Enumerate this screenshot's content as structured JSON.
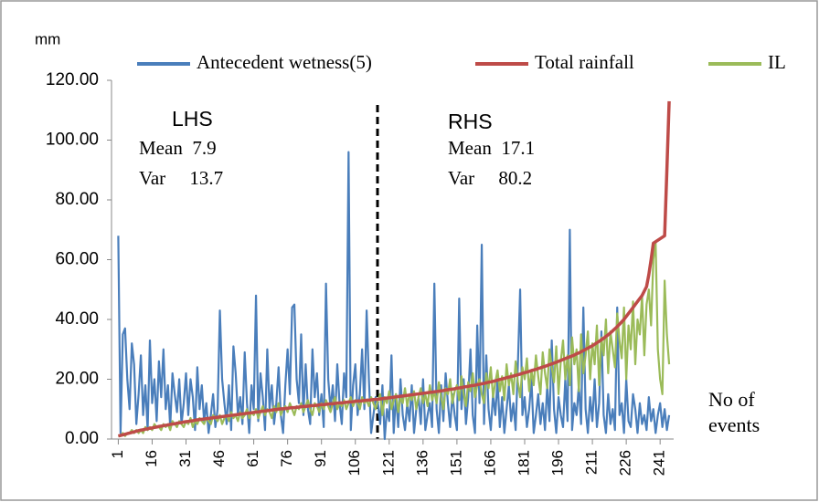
{
  "chart_data": {
    "type": "line",
    "y_label": "mm",
    "x_label": [
      "No of",
      "events"
    ],
    "annotations": [
      "LHS",
      "Mean  7.9",
      "Var     13.7",
      "RHS",
      "Mean  17.1",
      "Var     80.2"
    ],
    "legend": "top",
    "xlim": [
      -2,
      247
    ],
    "xticks": [
      1,
      16,
      31,
      46,
      61,
      76,
      91,
      106,
      121,
      136,
      151,
      166,
      181,
      196,
      211,
      226,
      241
    ],
    "ylim": [
      0,
      120
    ],
    "yticks": [
      {
        "value": 0,
        "label": "0.00"
      },
      {
        "value": 20,
        "label": "20.00"
      },
      {
        "value": 40,
        "label": "40.00"
      },
      {
        "value": 60,
        "label": "60.00"
      },
      {
        "value": 80,
        "label": "80.00"
      },
      {
        "value": 100,
        "label": "100.00"
      },
      {
        "value": 120,
        "label": "120.00"
      }
    ],
    "x": [
      1,
      2,
      3,
      4,
      5,
      6,
      7,
      8,
      9,
      10,
      11,
      12,
      13,
      14,
      15,
      16,
      17,
      18,
      19,
      20,
      21,
      22,
      23,
      24,
      25,
      26,
      27,
      28,
      29,
      30,
      31,
      32,
      33,
      34,
      35,
      36,
      37,
      38,
      39,
      40,
      41,
      42,
      43,
      44,
      45,
      46,
      47,
      48,
      49,
      50,
      51,
      52,
      53,
      54,
      55,
      56,
      57,
      58,
      59,
      60,
      61,
      62,
      63,
      64,
      65,
      66,
      67,
      68,
      69,
      70,
      71,
      72,
      73,
      74,
      75,
      76,
      77,
      78,
      79,
      80,
      81,
      82,
      83,
      84,
      85,
      86,
      87,
      88,
      89,
      90,
      91,
      92,
      93,
      94,
      95,
      96,
      97,
      98,
      99,
      100,
      101,
      102,
      103,
      104,
      105,
      106,
      107,
      108,
      109,
      110,
      111,
      112,
      113,
      114,
      115,
      116,
      117,
      118,
      119,
      120,
      121,
      122,
      123,
      124,
      125,
      126,
      127,
      128,
      129,
      130,
      131,
      132,
      133,
      134,
      135,
      136,
      137,
      138,
      139,
      140,
      141,
      142,
      143,
      144,
      145,
      146,
      147,
      148,
      149,
      150,
      151,
      152,
      153,
      154,
      155,
      156,
      157,
      158,
      159,
      160,
      161,
      162,
      163,
      164,
      165,
      166,
      167,
      168,
      169,
      170,
      171,
      172,
      173,
      174,
      175,
      176,
      177,
      178,
      179,
      180,
      181,
      182,
      183,
      184,
      185,
      186,
      187,
      188,
      189,
      190,
      191,
      192,
      193,
      194,
      195,
      196,
      197,
      198,
      199,
      200,
      201,
      202,
      203,
      204,
      205,
      206,
      207,
      208,
      209,
      210,
      211,
      212,
      213,
      214,
      215,
      216,
      217,
      218,
      219,
      220,
      221,
      222,
      223,
      224,
      225,
      226,
      227,
      228,
      229,
      230,
      231,
      232,
      233,
      234,
      235,
      236,
      237,
      238,
      239,
      240,
      241,
      242,
      243,
      244,
      245
    ],
    "series": [
      {
        "name": "Antecedent wetness(5)",
        "color": "#4a7ebb",
        "values": [
          68,
          2,
          35,
          37,
          20,
          10,
          32,
          25,
          5,
          15,
          28,
          8,
          18,
          3,
          33,
          12,
          20,
          6,
          26,
          14,
          30,
          10,
          18,
          4,
          22,
          15,
          9,
          20,
          5,
          12,
          22,
          8,
          20,
          14,
          3,
          24,
          10,
          18,
          6,
          12,
          2,
          8,
          15,
          4,
          10,
          43,
          20,
          12,
          5,
          18,
          3,
          31,
          22,
          8,
          14,
          5,
          29,
          12,
          2,
          18,
          10,
          48,
          6,
          22,
          14,
          3,
          30,
          10,
          18,
          5,
          12,
          24,
          8,
          2,
          18,
          30,
          15,
          44,
          45,
          20,
          12,
          35,
          8,
          25,
          10,
          5,
          30,
          14,
          22,
          8,
          15,
          4,
          52,
          20,
          10,
          18,
          6,
          25,
          12,
          5,
          22,
          14,
          96,
          3,
          18,
          25,
          8,
          15,
          30,
          10,
          43,
          20,
          2,
          8,
          14,
          12,
          5,
          18,
          0,
          10,
          6,
          28,
          2,
          15,
          4,
          20,
          8,
          3,
          12,
          6,
          18,
          2,
          10,
          14,
          5,
          20,
          3,
          8,
          12,
          4,
          52,
          10,
          2,
          18,
          6,
          22,
          12,
          4,
          15,
          8,
          3,
          47,
          10,
          20,
          5,
          14,
          30,
          8,
          2,
          38,
          12,
          65,
          5,
          28,
          10,
          3,
          15,
          8,
          20,
          4,
          14,
          2,
          10,
          18,
          6,
          12,
          3,
          25,
          50,
          8,
          14,
          4,
          10,
          20,
          2,
          8,
          15,
          5,
          12,
          3,
          18,
          6,
          33,
          10,
          2,
          14,
          8,
          4,
          20,
          6,
          70,
          3,
          12,
          8,
          18,
          5,
          44,
          10,
          2,
          14,
          6,
          20,
          4,
          12,
          36,
          8,
          2,
          15,
          5,
          10,
          3,
          44,
          8,
          12,
          2,
          20,
          6,
          4,
          15,
          10,
          2,
          12,
          5,
          8,
          3,
          14,
          6,
          10,
          2,
          8,
          12,
          4,
          10,
          3,
          8
        ]
      },
      {
        "name": "Total rainfall",
        "color": "#be4b48",
        "values": [
          1.0,
          1.2,
          1.4,
          1.6,
          1.8,
          2.0,
          2.2,
          2.4,
          2.6,
          2.8,
          3.0,
          3.1,
          3.3,
          3.4,
          3.6,
          3.7,
          3.9,
          4.0,
          4.2,
          4.3,
          4.5,
          4.6,
          4.7,
          4.9,
          5.0,
          5.1,
          5.3,
          5.4,
          5.5,
          5.7,
          5.8,
          5.9,
          6.0,
          6.1,
          6.3,
          6.4,
          6.5,
          6.6,
          6.7,
          6.8,
          6.9,
          7.0,
          7.1,
          7.2,
          7.3,
          7.4,
          7.5,
          7.6,
          7.7,
          7.8,
          7.9,
          8.0,
          8.1,
          8.2,
          8.3,
          8.4,
          8.5,
          8.6,
          8.7,
          8.8,
          8.9,
          9.0,
          9.1,
          9.2,
          9.3,
          9.4,
          9.5,
          9.6,
          9.7,
          9.8,
          9.9,
          10.0,
          10.1,
          10.1,
          10.2,
          10.3,
          10.4,
          10.5,
          10.5,
          10.6,
          10.7,
          10.8,
          10.9,
          10.9,
          11.0,
          11.1,
          11.2,
          11.2,
          11.3,
          11.4,
          11.5,
          11.5,
          11.6,
          11.7,
          11.8,
          11.8,
          11.9,
          12.0,
          12.1,
          12.1,
          12.2,
          12.3,
          12.4,
          12.4,
          12.5,
          12.6,
          12.7,
          12.7,
          12.8,
          12.9,
          13.0,
          13.0,
          13.1,
          13.2,
          13.3,
          13.3,
          13.4,
          13.5,
          13.6,
          13.7,
          13.8,
          13.9,
          14.0,
          14.1,
          14.2,
          14.3,
          14.4,
          14.5,
          14.6,
          14.7,
          14.8,
          14.9,
          15.0,
          15.1,
          15.2,
          15.3,
          15.4,
          15.5,
          15.6,
          15.7,
          15.8,
          15.9,
          16.0,
          16.1,
          16.2,
          16.4,
          16.5,
          16.6,
          16.7,
          16.8,
          17.0,
          17.1,
          17.2,
          17.4,
          17.5,
          17.6,
          17.8,
          17.9,
          18.0,
          18.2,
          18.3,
          18.5,
          18.6,
          18.8,
          19.0,
          19.1,
          19.3,
          19.5,
          19.7,
          19.9,
          20.1,
          20.3,
          20.5,
          20.7,
          20.9,
          21.1,
          21.3,
          21.5,
          21.7,
          22.0,
          22.2,
          22.4,
          22.6,
          22.9,
          23.1,
          23.3,
          23.6,
          23.8,
          24.1,
          24.3,
          24.6,
          24.9,
          25.1,
          25.4,
          25.7,
          26.0,
          26.3,
          26.6,
          26.9,
          27.2,
          27.5,
          27.8,
          28.1,
          28.5,
          28.8,
          29.2,
          29.6,
          30.0,
          30.4,
          30.8,
          31.2,
          31.7,
          32.2,
          32.7,
          33.2,
          33.7,
          34.3,
          34.9,
          35.5,
          36.2,
          36.9,
          37.6,
          38.4,
          39.2,
          40.0,
          41.0,
          42.0,
          43.0,
          44.0,
          45.0,
          46.0,
          47.0,
          48.0,
          49.5,
          51.0,
          55.0,
          60.0,
          65.5,
          66.0,
          66.5,
          67.0,
          67.5,
          68.0,
          90.0,
          113.0
        ]
      },
      {
        "name": "IL",
        "color": "#9bbb59",
        "values": [
          1,
          1,
          2,
          1,
          2,
          2,
          3,
          2,
          3,
          2,
          3,
          2,
          4,
          3,
          4,
          3,
          5,
          4,
          4,
          3,
          5,
          4,
          5,
          3,
          6,
          5,
          4,
          6,
          5,
          4,
          6,
          5,
          7,
          4,
          6,
          5,
          7,
          6,
          5,
          7,
          6,
          5,
          8,
          7,
          6,
          8,
          5,
          7,
          8,
          6,
          9,
          7,
          8,
          6,
          9,
          7,
          8,
          10,
          7,
          9,
          8,
          10,
          7,
          9,
          11,
          8,
          10,
          9,
          7,
          11,
          9,
          12,
          8,
          10,
          11,
          9,
          12,
          10,
          8,
          11,
          10,
          12,
          9,
          11,
          13,
          10,
          8,
          12,
          11,
          9,
          12,
          10,
          13,
          11,
          9,
          12,
          14,
          10,
          12,
          11,
          13,
          10,
          12,
          14,
          11,
          13,
          12,
          10,
          14,
          12,
          13,
          11,
          14,
          12,
          10,
          13,
          15,
          8,
          14,
          12,
          16,
          10,
          13,
          15,
          9,
          14,
          12,
          17,
          11,
          15,
          13,
          16,
          10,
          14,
          17,
          12,
          15,
          11,
          18,
          13,
          16,
          12,
          19,
          14,
          10,
          17,
          15,
          20,
          12,
          16,
          18,
          13,
          21,
          15,
          11,
          19,
          16,
          22,
          14,
          18,
          20,
          15,
          12,
          22,
          17,
          24,
          14,
          19,
          23,
          16,
          21,
          13,
          25,
          18,
          22,
          15,
          26,
          19,
          14,
          24,
          20,
          27,
          16,
          23,
          18,
          28,
          21,
          15,
          29,
          22,
          17,
          30,
          24,
          19,
          31,
          15,
          26,
          33,
          20,
          28,
          18,
          34,
          25,
          30,
          16,
          35,
          22,
          28,
          36,
          20,
          32,
          25,
          38,
          18,
          34,
          28,
          40,
          22,
          36,
          30,
          24,
          42,
          33,
          27,
          44,
          20,
          38,
          30,
          46,
          25,
          40,
          35,
          48,
          28,
          45,
          50,
          38,
          60,
          66,
          30,
          20,
          15,
          53,
          35,
          25
        ]
      }
    ]
  }
}
